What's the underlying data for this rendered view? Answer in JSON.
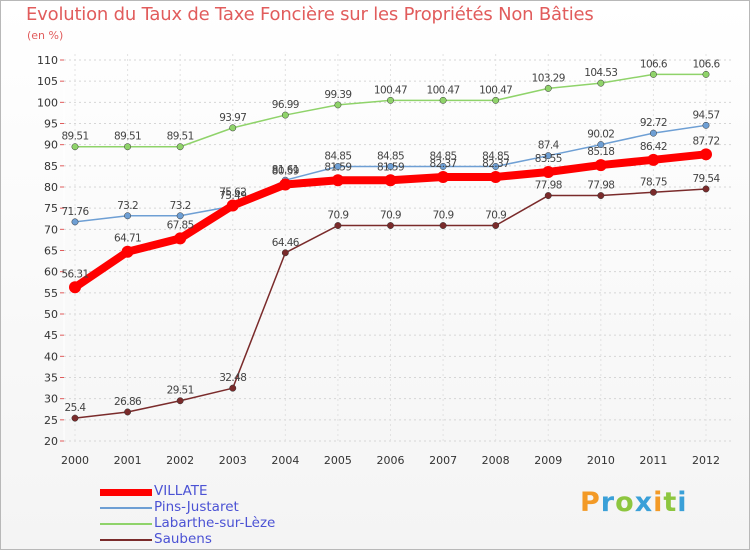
{
  "chart_data": {
    "type": "line",
    "title": "Evolution du Taux de Taxe Foncière sur les Propriétés Non Bâties",
    "subtitle": "(en %)",
    "ylim": [
      20,
      110
    ],
    "y_ticks": [
      20,
      25,
      30,
      35,
      40,
      45,
      50,
      55,
      60,
      65,
      70,
      75,
      80,
      85,
      90,
      95,
      100,
      105,
      110
    ],
    "categories": [
      "2000",
      "2001",
      "2002",
      "2003",
      "2004",
      "2005",
      "2006",
      "2007",
      "2008",
      "2009",
      "2010",
      "2011",
      "2012"
    ],
    "grid": "horizontal dashed",
    "legend_position": "bottom-left",
    "series": [
      {
        "name": "Saubens",
        "color": "#7a2b2b",
        "labels": [
          "25.4",
          "26.86",
          "29.51",
          "32.48",
          "64.46",
          "70.9",
          "70.9",
          "70.9",
          "70.9",
          "77.98",
          "77.98",
          "78.75",
          "79.54"
        ],
        "values": [
          25.4,
          26.86,
          29.51,
          32.48,
          64.46,
          70.9,
          70.9,
          70.9,
          70.9,
          77.98,
          77.98,
          78.75,
          79.54
        ]
      },
      {
        "name": "Labarthe-sur-Lèze",
        "color": "#8fd36a",
        "labels": [
          "89.51",
          "89.51",
          "89.51",
          "93.97",
          "96.99",
          "99.39",
          "100.47",
          "100.47",
          "100.47",
          "103.29",
          "104.53",
          "106.6",
          "106.6"
        ],
        "values": [
          89.51,
          89.51,
          89.51,
          93.97,
          96.99,
          99.39,
          100.47,
          100.47,
          100.47,
          103.29,
          104.53,
          106.6,
          106.6
        ]
      },
      {
        "name": "Pins-Justaret",
        "color": "#6e9fd4",
        "labels": [
          "71.76",
          "73.2",
          "73.2",
          "75.49",
          "81.61",
          "84.85",
          "84.85",
          "84.85",
          "84.85",
          "87.4",
          "90.02",
          "92.72",
          "94.57"
        ],
        "values": [
          71.76,
          73.2,
          73.2,
          75.49,
          81.61,
          84.85,
          84.85,
          84.85,
          84.85,
          87.4,
          90.02,
          92.72,
          94.57
        ]
      },
      {
        "name": "VILLATE",
        "color": "#ff0000",
        "labels": [
          "56.31",
          "64.71",
          "67.85",
          "75.62",
          "80.59",
          "81.59",
          "81.59",
          "82.37",
          "82.37",
          "83.55",
          "85.18",
          "86.42",
          "87.72"
        ],
        "values": [
          56.31,
          64.71,
          67.85,
          75.62,
          80.59,
          81.59,
          81.59,
          82.37,
          82.37,
          83.55,
          85.18,
          86.42,
          87.72
        ]
      }
    ],
    "legend": [
      "VILLATE",
      "Pins-Justaret",
      "Labarthe-sur-Lèze",
      "Saubens"
    ]
  },
  "logo": {
    "letters": [
      "P",
      "r",
      "o",
      "x",
      "i",
      "t",
      "i"
    ],
    "colors": [
      "#f39a26",
      "#3aa0d8",
      "#8dc63f",
      "#3aa0d8",
      "#f39a26",
      "#8dc63f",
      "#3aa0d8"
    ]
  }
}
